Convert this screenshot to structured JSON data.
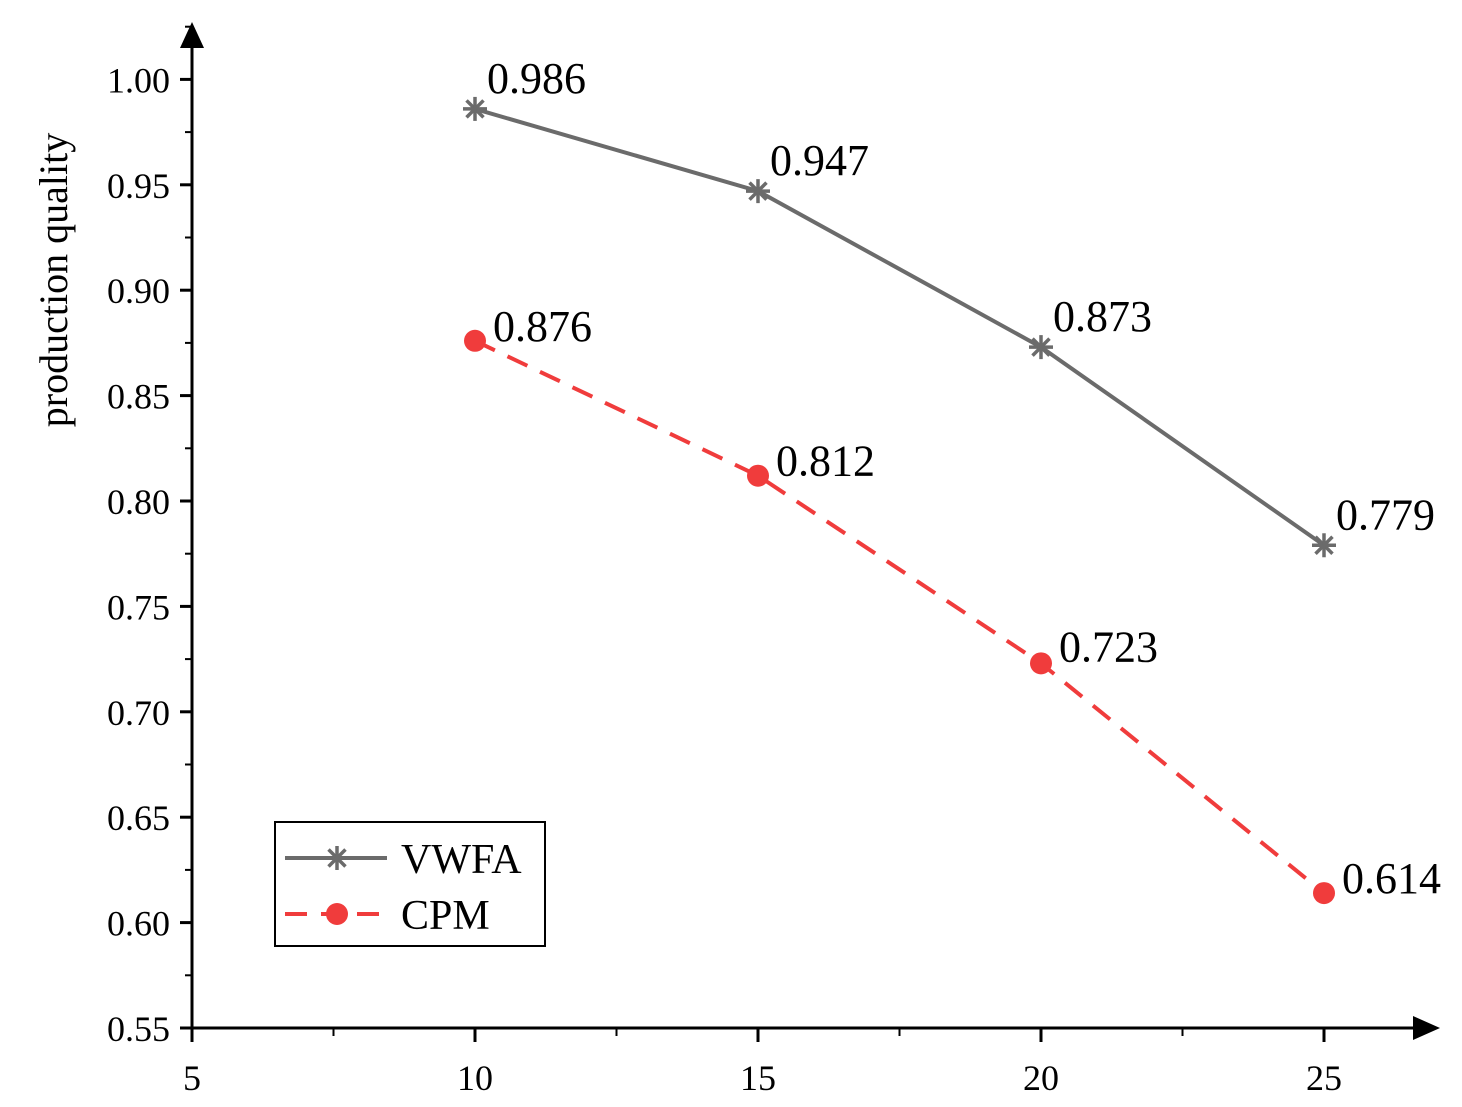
{
  "chart_data": {
    "type": "line",
    "title": "",
    "xlabel": "",
    "ylabel": "production quality",
    "xlim": [
      5,
      27
    ],
    "ylim": [
      0.55,
      1.02
    ],
    "x_ticks": [
      5,
      10,
      15,
      20,
      25
    ],
    "x_tick_labels": [
      "5",
      "10",
      "15",
      "20",
      "25"
    ],
    "y_ticks": [
      0.55,
      0.6,
      0.65,
      0.7,
      0.75,
      0.8,
      0.85,
      0.9,
      0.95,
      1.0
    ],
    "y_tick_labels": [
      "0.55",
      "0.60",
      "0.65",
      "0.70",
      "0.75",
      "0.80",
      "0.85",
      "0.90",
      "0.95",
      "1.00"
    ],
    "grid": false,
    "legend_position": "bottom-left",
    "x": [
      10,
      15,
      20,
      25
    ],
    "series": [
      {
        "name": "VWFA",
        "values": [
          0.986,
          0.947,
          0.873,
          0.779
        ],
        "labels": [
          "0.986",
          "0.947",
          "0.873",
          "0.779"
        ],
        "color": "#6b6b6b",
        "line_style": "solid",
        "marker": "asterisk"
      },
      {
        "name": "CPM",
        "values": [
          0.876,
          0.812,
          0.723,
          0.614
        ],
        "labels": [
          "0.876",
          "0.812",
          "0.723",
          "0.614"
        ],
        "color": "#f03c3c",
        "line_style": "dashed",
        "marker": "circle"
      }
    ]
  }
}
